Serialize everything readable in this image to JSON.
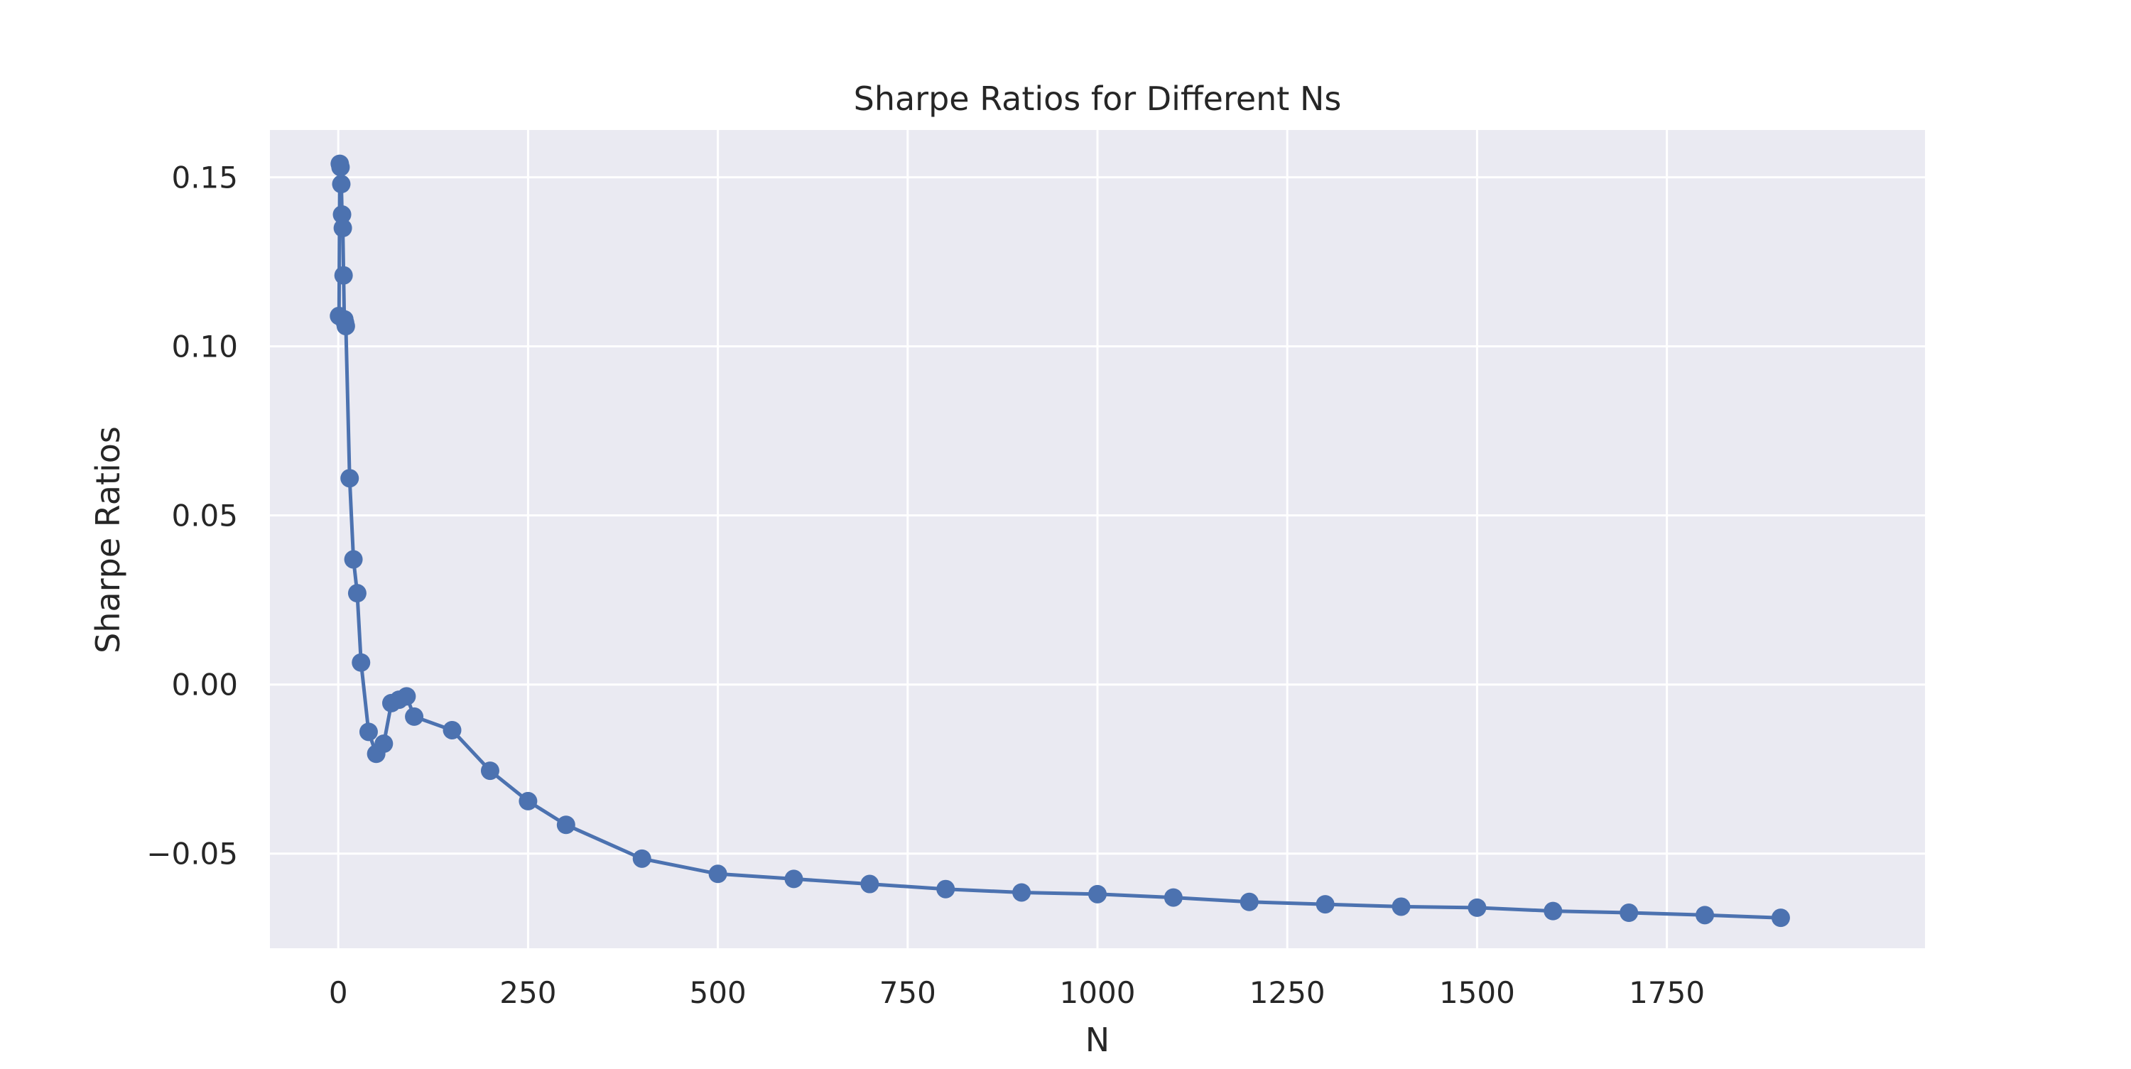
{
  "chart_data": {
    "type": "line",
    "title": "Sharpe Ratios for Different Ns",
    "xlabel": "N",
    "ylabel": "Sharpe Ratios",
    "xlim": [
      -90,
      2090
    ],
    "ylim": [
      -0.078,
      0.164
    ],
    "xticks": [
      0,
      250,
      500,
      750,
      1000,
      1250,
      1500,
      1750
    ],
    "xtick_labels": [
      "0",
      "250",
      "500",
      "750",
      "1000",
      "1250",
      "1500",
      "1750"
    ],
    "yticks": [
      -0.05,
      0.0,
      0.05,
      0.1,
      0.15
    ],
    "ytick_labels": [
      "−0.05",
      "0.00",
      "0.05",
      "0.10",
      "0.15"
    ],
    "grid": true,
    "colors": {
      "line": "#4c72b0",
      "background": "#eaeaf2",
      "grid": "#ffffff"
    },
    "series": [
      {
        "x": [
          1,
          2,
          3,
          4,
          5,
          6,
          7,
          8,
          9,
          10,
          15,
          20,
          25,
          30,
          40,
          50,
          60,
          70,
          80,
          90,
          100,
          150,
          200,
          250,
          300,
          400,
          500,
          600,
          700,
          800,
          900,
          1000,
          1100,
          1200,
          1300,
          1400,
          1500,
          1600,
          1700,
          1800,
          1900
        ],
        "values": [
          0.109,
          0.154,
          0.153,
          0.148,
          0.139,
          0.135,
          0.121,
          0.108,
          0.107,
          0.106,
          0.061,
          0.037,
          0.027,
          0.0065,
          -0.014,
          -0.0205,
          -0.0175,
          -0.0055,
          -0.0045,
          -0.0035,
          -0.0095,
          -0.0135,
          -0.0255,
          -0.0345,
          -0.0415,
          -0.0515,
          -0.056,
          -0.0575,
          -0.059,
          -0.0605,
          -0.0615,
          -0.062,
          -0.063,
          -0.0643,
          -0.065,
          -0.0657,
          -0.066,
          -0.067,
          -0.0675,
          -0.0682,
          -0.069
        ]
      }
    ]
  }
}
